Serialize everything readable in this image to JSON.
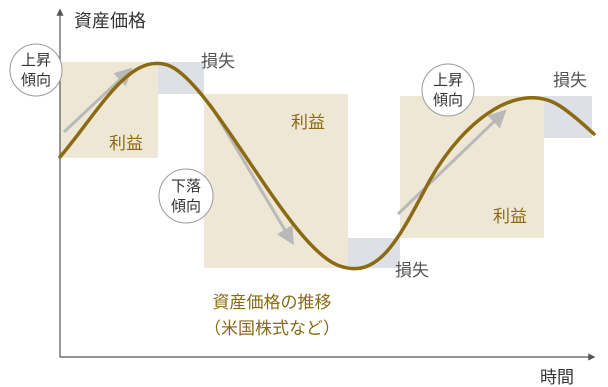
{
  "axes": {
    "y_label": "資産価格",
    "x_label": "時間"
  },
  "labels": {
    "trend_up": [
      "上昇",
      "傾向"
    ],
    "trend_down": [
      "下落",
      "傾向"
    ],
    "profit": "利益",
    "loss": "損失",
    "curve_caption": [
      "資産価格の推移",
      "（米国株式など）"
    ]
  },
  "colors": {
    "curve": "#8a6a12",
    "profit_box": "#efe7d6",
    "loss_box": "#dde1e5",
    "trend_arrow": "#b9b9b9",
    "caption": "#8a6a12",
    "text": "#333333",
    "axis": "#555555"
  }
}
